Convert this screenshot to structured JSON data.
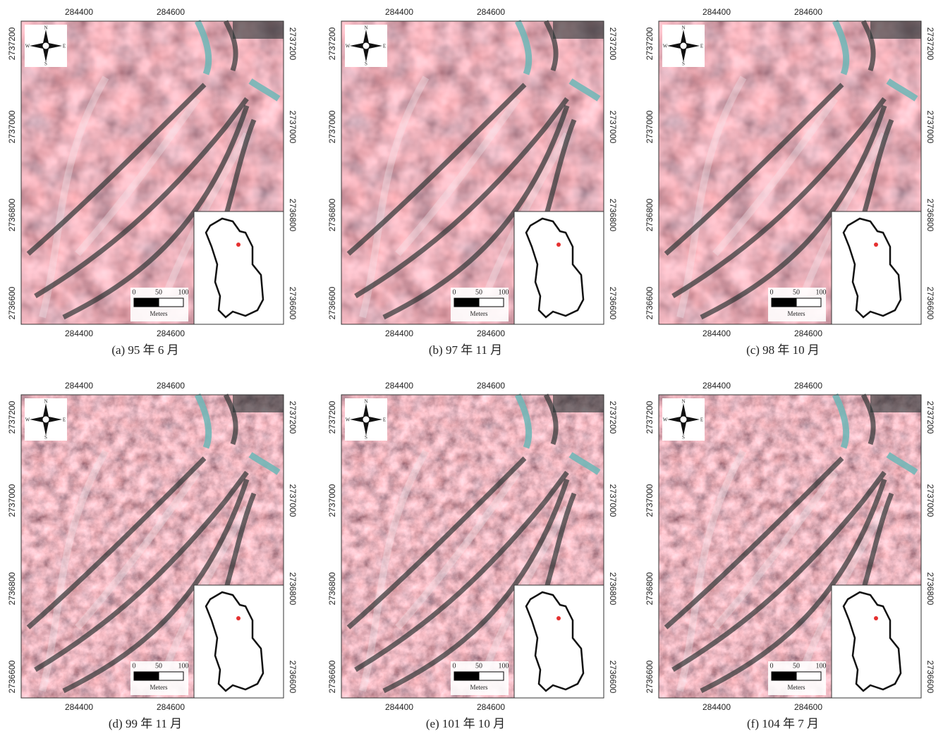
{
  "panels": [
    {
      "caption": "(a) 95 年 6 月"
    },
    {
      "caption": "(b) 97 年 11 月"
    },
    {
      "caption": "(c) 98 年 10 月"
    },
    {
      "caption": "(d) 99 年 11 月"
    },
    {
      "caption": "(e) 101 年 10 月"
    },
    {
      "caption": "(f) 104 年 7 月"
    }
  ],
  "x_ticks": [
    284400,
    284600
  ],
  "y_ticks": [
    2737200,
    2737000,
    2736800,
    2736600
  ],
  "compass": {
    "n": "N",
    "s": "S",
    "e": "E",
    "w": "W"
  },
  "scale_bar": {
    "ticks": [
      0,
      50,
      100
    ],
    "unit": "Meters"
  }
}
